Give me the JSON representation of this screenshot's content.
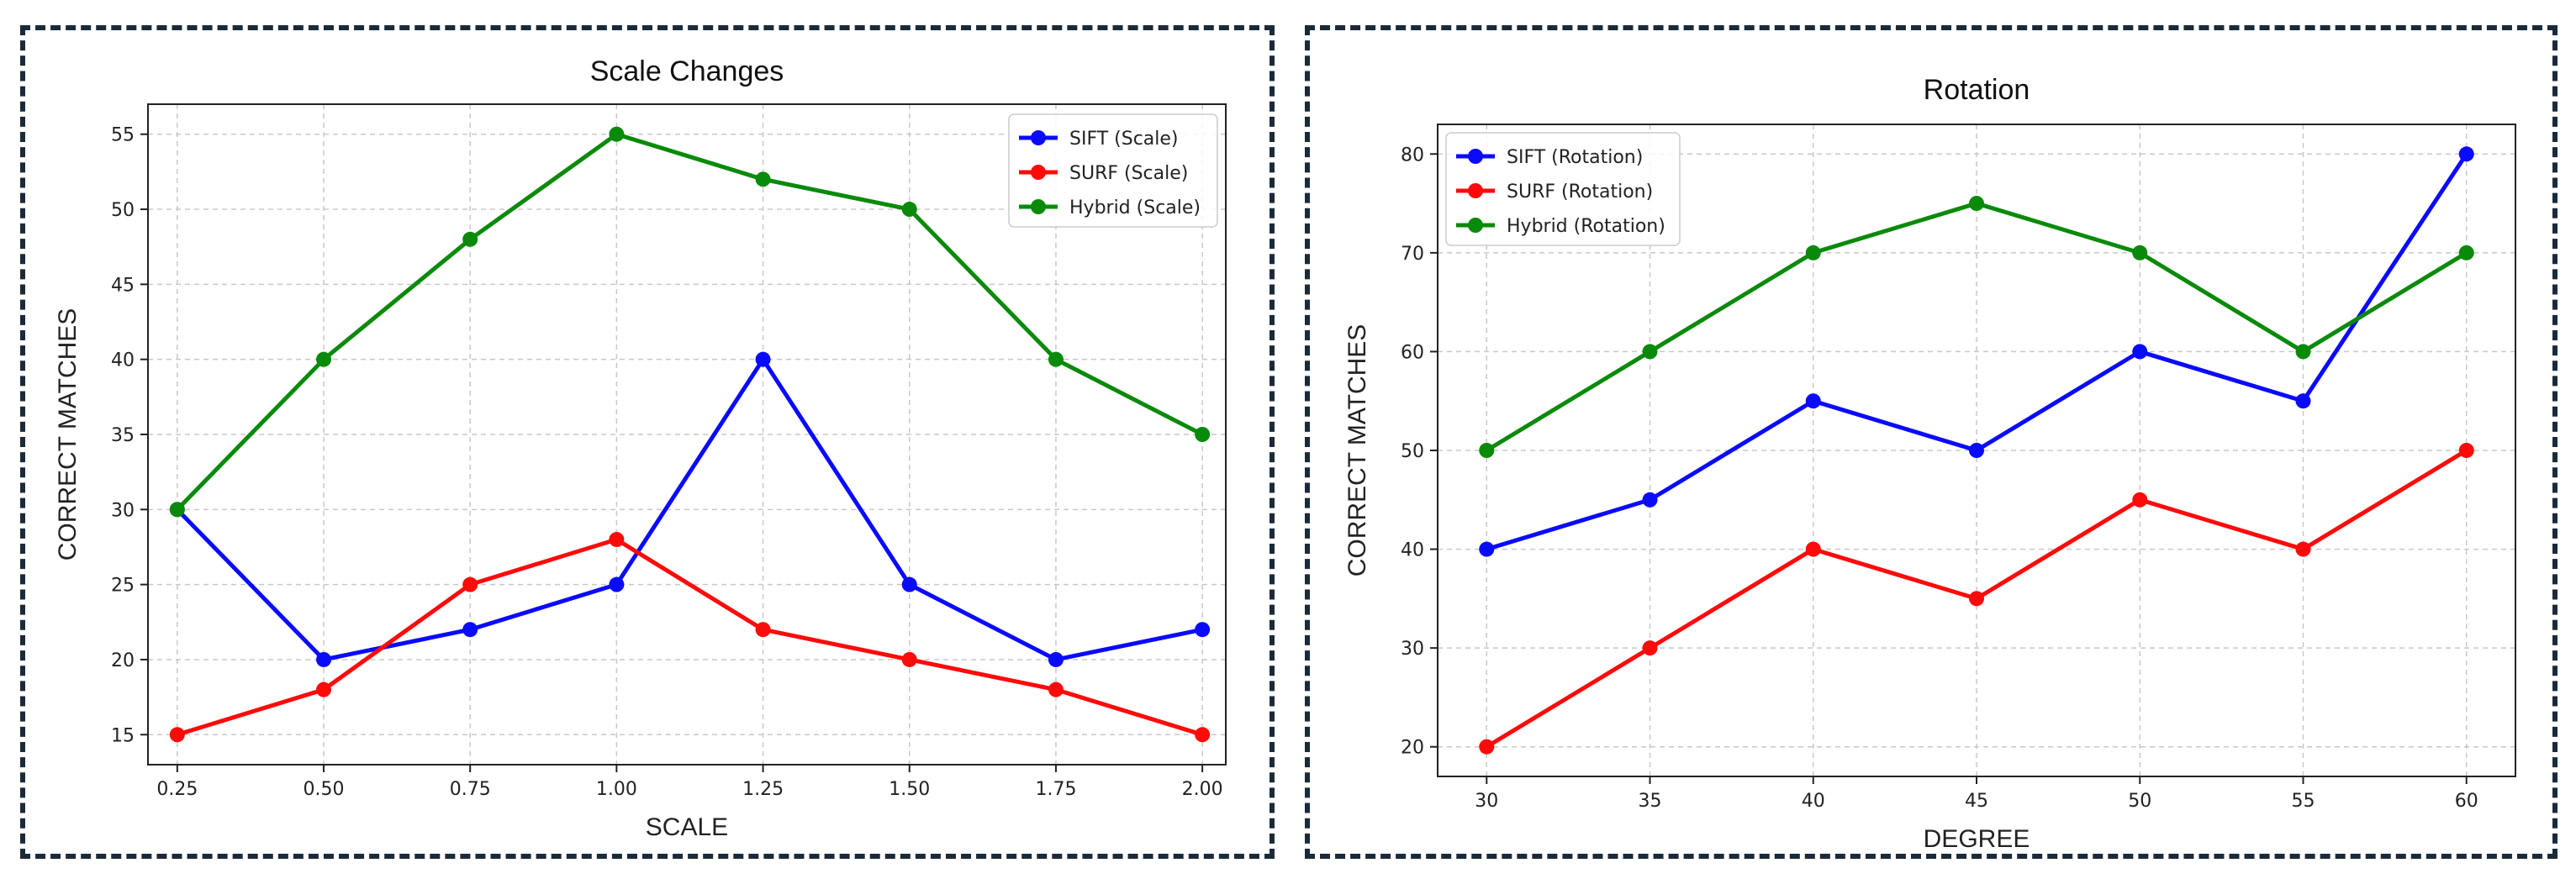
{
  "chart_data": [
    {
      "type": "line",
      "title": "Scale Changes",
      "xlabel": "SCALE",
      "ylabel": "CORRECT MATCHES",
      "x": [
        0.25,
        0.5,
        0.75,
        1.0,
        1.25,
        1.5,
        1.75,
        2.0
      ],
      "x_tick_labels": [
        "0.25",
        "0.50",
        "0.75",
        "1.00",
        "1.25",
        "1.50",
        "1.75",
        "2.00"
      ],
      "xlim": [
        0.2,
        2.04
      ],
      "y_ticks": [
        15,
        20,
        25,
        30,
        35,
        40,
        45,
        50,
        55
      ],
      "ylim": [
        13,
        57
      ],
      "grid": true,
      "legend_position": "top-right",
      "series": [
        {
          "name": "SIFT (Scale)",
          "color": "#0a0aff",
          "values": [
            30,
            20,
            22,
            25,
            40,
            25,
            20,
            22
          ]
        },
        {
          "name": "SURF (Scale)",
          "color": "#ff0a0a",
          "values": [
            15,
            18,
            25,
            28,
            22,
            20,
            18,
            15
          ]
        },
        {
          "name": "Hybrid (Scale)",
          "color": "#0a8a0a",
          "values": [
            30,
            40,
            48,
            55,
            52,
            50,
            40,
            35
          ]
        }
      ]
    },
    {
      "type": "line",
      "title": "Rotation",
      "xlabel": "DEGREE",
      "ylabel": "CORRECT MATCHES",
      "x": [
        30,
        35,
        40,
        45,
        50,
        55,
        60
      ],
      "x_tick_labels": [
        "30",
        "35",
        "40",
        "45",
        "50",
        "55",
        "60"
      ],
      "xlim": [
        28.5,
        61.5
      ],
      "y_ticks": [
        20,
        30,
        40,
        50,
        60,
        70,
        80
      ],
      "ylim": [
        17,
        83
      ],
      "grid": true,
      "legend_position": "top-left",
      "series": [
        {
          "name": "SIFT (Rotation)",
          "color": "#0a0aff",
          "values": [
            40,
            45,
            55,
            50,
            60,
            55,
            80
          ]
        },
        {
          "name": "SURF (Rotation)",
          "color": "#ff0a0a",
          "values": [
            20,
            30,
            40,
            35,
            45,
            40,
            50
          ]
        },
        {
          "name": "Hybrid (Rotation)",
          "color": "#0a8a0a",
          "values": [
            50,
            60,
            70,
            75,
            70,
            60,
            70
          ]
        }
      ]
    }
  ]
}
